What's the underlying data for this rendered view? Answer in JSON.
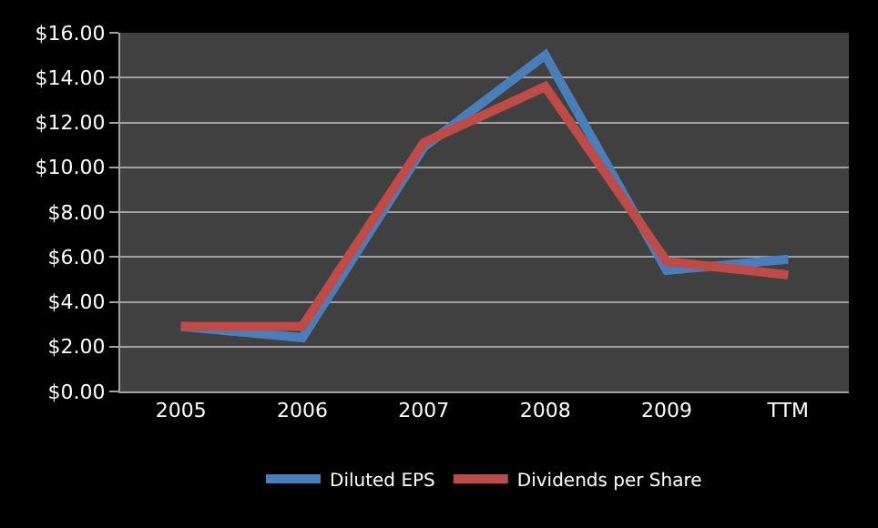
{
  "chart_data": {
    "type": "line",
    "categories": [
      "2005",
      "2006",
      "2007",
      "2008",
      "2009",
      "TTM"
    ],
    "series": [
      {
        "name": "Diluted EPS",
        "color": "#4a7ebb",
        "values": [
          2.9,
          2.4,
          10.9,
          15.0,
          5.4,
          5.9
        ]
      },
      {
        "name": "Dividends per Share",
        "color": "#be4b48",
        "values": [
          2.9,
          2.9,
          11.1,
          13.6,
          5.8,
          5.2
        ]
      }
    ],
    "ylim": [
      0,
      16
    ],
    "yticks": [
      {
        "value": 0,
        "label": "$0.00"
      },
      {
        "value": 2,
        "label": "$2.00"
      },
      {
        "value": 4,
        "label": "$4.00"
      },
      {
        "value": 6,
        "label": "$6.00"
      },
      {
        "value": 8,
        "label": "$8.00"
      },
      {
        "value": 10,
        "label": "$10.00"
      },
      {
        "value": 12,
        "label": "$12.00"
      },
      {
        "value": 14,
        "label": "$14.00"
      },
      {
        "value": 16,
        "label": "$16.00"
      }
    ],
    "grid": "y",
    "legend": "bottom",
    "marker": "none",
    "line_style": "solid"
  }
}
